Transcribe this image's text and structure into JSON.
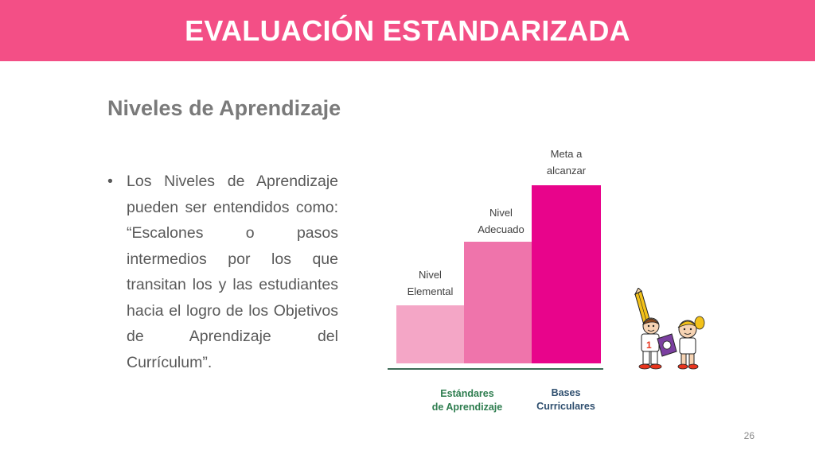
{
  "slide": {
    "title": "EVALUACIÓN ESTANDARIZADA",
    "subtitle": "Niveles de Aprendizaje",
    "bullet_symbol": "•",
    "bullet_text": "Los Niveles de Aprendizaje pueden ser entendidos como: “Escalones o pasos intermedios por los que transitan los y las estudiantes hacia el logro de los Objetivos de Aprendizaje del Currículum”.",
    "page_number": "26"
  },
  "diagram": {
    "steps": [
      {
        "label_line1": "Nivel",
        "label_line2": "Elemental",
        "level": 1,
        "color": "#f4a6c6"
      },
      {
        "label_line1": "Nivel",
        "label_line2": "Adecuado",
        "level": 2,
        "color": "#ef74ab"
      },
      {
        "label_line1": "Meta a",
        "label_line2": "alcanzar",
        "level": 3,
        "color": "#e8048b"
      }
    ],
    "axis_labels": [
      {
        "line1": "Estándares",
        "line2": "de Aprendizaje",
        "color": "#2e7d4f"
      },
      {
        "line1": "Bases",
        "line2": "Curriculares",
        "color": "#2f4f6f"
      }
    ]
  },
  "colors": {
    "banner": "#f34f86",
    "subtitle": "#7a7a7a",
    "body_text": "#595959",
    "baseline": "#3e6a56"
  },
  "clipart": {
    "icon": "children-with-pencil-illustration"
  }
}
